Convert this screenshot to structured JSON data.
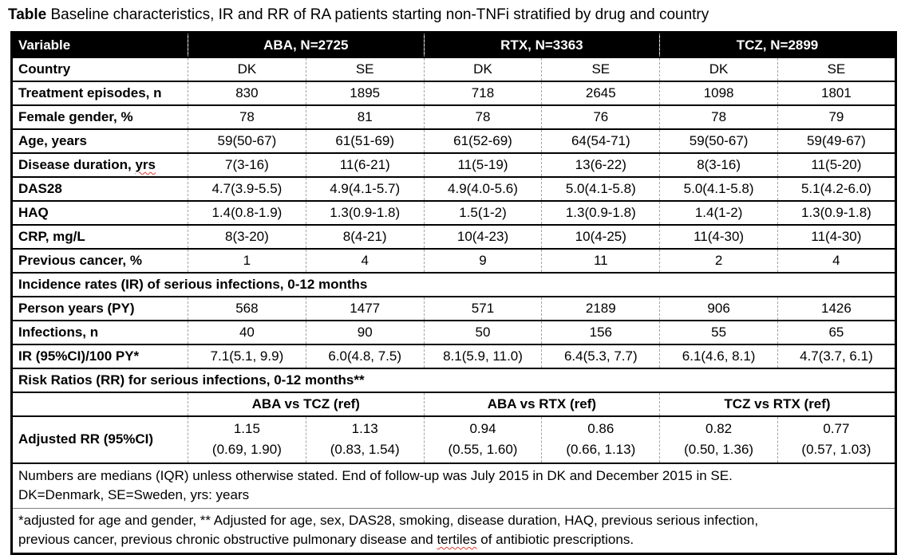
{
  "title": {
    "bold": "Table",
    "rest": " Baseline characteristics, IR and RR of RA patients starting non-TNFi stratified by drug and country"
  },
  "table": {
    "header": {
      "variable": "Variable",
      "aba": "ABA, N=2725",
      "rtx": "RTX, N=3363",
      "tcz": "TCZ, N=2899"
    },
    "country": {
      "label": "Country",
      "values": [
        "DK",
        "SE",
        "DK",
        "SE",
        "DK",
        "SE"
      ]
    },
    "rows": [
      {
        "label": "Treatment episodes, n",
        "values": [
          "830",
          "1895",
          "718",
          "2645",
          "1098",
          "1801"
        ]
      },
      {
        "label": "Female gender, %",
        "values": [
          "78",
          "81",
          "78",
          "76",
          "78",
          "79"
        ]
      },
      {
        "label": "Age, years",
        "values": [
          "59(50-67)",
          "61(51-69)",
          "61(52-69)",
          "64(54-71)",
          "59(50-67)",
          "59(49-67)"
        ]
      },
      {
        "label_pre": "Disease duration, ",
        "label_misspelled": "yrs",
        "values": [
          "7(3-16)",
          "11(6-21)",
          "11(5-19)",
          "13(6-22)",
          "8(3-16)",
          "11(5-20)"
        ]
      },
      {
        "label": "DAS28",
        "values": [
          "4.7(3.9-5.5)",
          "4.9(4.1-5.7)",
          "4.9(4.0-5.6)",
          "5.0(4.1-5.8)",
          "5.0(4.1-5.8)",
          "5.1(4.2-6.0)"
        ]
      },
      {
        "label": "HAQ",
        "values": [
          "1.4(0.8-1.9)",
          "1.3(0.9-1.8)",
          "1.5(1-2)",
          "1.3(0.9-1.8)",
          "1.4(1-2)",
          "1.3(0.9-1.8)"
        ]
      },
      {
        "label": "CRP, mg/L",
        "values": [
          "8(3-20)",
          "8(4-21)",
          "10(4-23)",
          "10(4-25)",
          "11(4-30)",
          "11(4-30)"
        ]
      },
      {
        "label": "Previous cancer, %",
        "values": [
          "1",
          "4",
          "9",
          "11",
          "2",
          "4"
        ]
      }
    ],
    "ir_section": {
      "title": "Incidence rates (IR) of serious infections, 0-12 months",
      "rows": [
        {
          "label": "Person years (PY)",
          "values": [
            "568",
            "1477",
            "571",
            "2189",
            "906",
            "1426"
          ]
        },
        {
          "label": "Infections, n",
          "values": [
            "40",
            "90",
            "50",
            "156",
            "55",
            "65"
          ]
        },
        {
          "label": "IR (95%CI)/100 PY*",
          "values": [
            "7.1(5.1, 9.9)",
            "6.0(4.8, 7.5)",
            "8.1(5.9, 11.0)",
            "6.4(5.3, 7.7)",
            "6.1(4.6, 8.1)",
            "4.7(3.7, 6.1)"
          ]
        }
      ]
    },
    "rr_section": {
      "title": "Risk Ratios (RR) for serious infections, 0-12 months**",
      "comparisons": [
        "ABA vs TCZ (ref)",
        "ABA vs RTX (ref)",
        "TCZ vs RTX (ref)"
      ],
      "adjusted": {
        "label": "Adjusted RR (95%CI)",
        "estimates": [
          "1.15",
          "1.13",
          "0.94",
          "0.86",
          "0.82",
          "0.77"
        ],
        "cis": [
          "(0.69, 1.90)",
          "(0.83, 1.54)",
          "(0.55, 1.60)",
          "(0.66, 1.13)",
          "(0.50, 1.36)",
          "(0.57, 1.03)"
        ]
      }
    },
    "footnotes": {
      "line1": "Numbers are medians (IQR) unless otherwise stated. End of follow-up was July 2015 in DK and December 2015 in SE.",
      "line2": "DK=Denmark, SE=Sweden, yrs: years",
      "line3": "*adjusted for age and gender, ** Adjusted for age, sex, DAS28, smoking, disease duration, HAQ, previous serious infection,",
      "line4_pre": "previous cancer, previous chronic obstructive pulmonary disease and ",
      "line4_misspelled": "tertiles",
      "line4_post": " of antibiotic prescriptions."
    }
  }
}
